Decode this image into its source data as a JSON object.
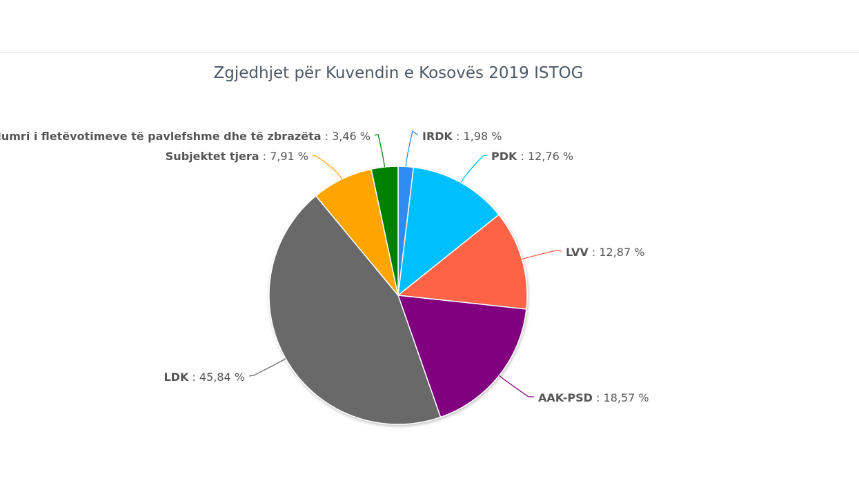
{
  "chart_data": {
    "type": "pie",
    "title": "Zgjedhjet për Kuvendin e Kosovës 2019 ISTOG",
    "unit": "%",
    "slices": [
      {
        "name": "IRDK",
        "value": 1.98,
        "label": "1,98 %",
        "color": "#2f8cf0"
      },
      {
        "name": "PDK",
        "value": 12.76,
        "label": "12,76 %",
        "color": "#00bfff"
      },
      {
        "name": "LVV",
        "value": 12.87,
        "label": "12,87 %",
        "color": "#ff6347"
      },
      {
        "name": "AAK-PSD",
        "value": 18.57,
        "label": "18,57 %",
        "color": "#800080"
      },
      {
        "name": "LDK",
        "value": 45.84,
        "label": "45,84 %",
        "color": "#696969"
      },
      {
        "name": "Subjektet tjera",
        "value": 7.91,
        "label": "7,91 %",
        "color": "#ffa500"
      },
      {
        "name": "Numri i fletëvotimeve të pavlefshme dhe të zbrazëta",
        "value": 3.46,
        "label": "3,46 %",
        "color": "#008000"
      }
    ]
  }
}
